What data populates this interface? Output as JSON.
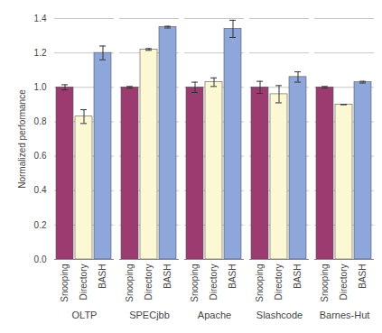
{
  "chart_data": {
    "type": "bar",
    "y_label": "Normalized performance",
    "categories": [
      "OLTP",
      "SPECjbb",
      "Apache",
      "Slashcode",
      "Barnes-Hut"
    ],
    "series": [
      {
        "name": "Snooping",
        "color": "#9c3b6f",
        "values": [
          1.0,
          1.0,
          1.0,
          1.0,
          1.0
        ],
        "errors": [
          0.015,
          0.005,
          0.03,
          0.035,
          0.005
        ]
      },
      {
        "name": "Directory",
        "color": "#fbf8d3",
        "values": [
          0.83,
          1.22,
          1.03,
          0.96,
          0.9
        ],
        "errors": [
          0.04,
          0.005,
          0.025,
          0.05,
          0.0
        ]
      },
      {
        "name": "BASH",
        "color": "#8ea6da",
        "values": [
          1.2,
          1.35,
          1.34,
          1.06,
          1.03
        ],
        "errors": [
          0.04,
          0.005,
          0.05,
          0.03,
          0.005
        ]
      }
    ],
    "ylim": [
      0,
      1.4
    ],
    "yticks": [
      {
        "value": 0,
        "label": "0.0"
      },
      {
        "value": 0.2,
        "label": "0.2"
      },
      {
        "value": 0.4,
        "label": "0.4"
      },
      {
        "value": 0.6,
        "label": "0.6"
      },
      {
        "value": 0.8,
        "label": "0.8"
      },
      {
        "value": 1.0,
        "label": "1.0"
      },
      {
        "value": 1.2,
        "label": "1.2"
      },
      {
        "value": 1.4,
        "label": "1.4"
      }
    ],
    "grid": true
  }
}
